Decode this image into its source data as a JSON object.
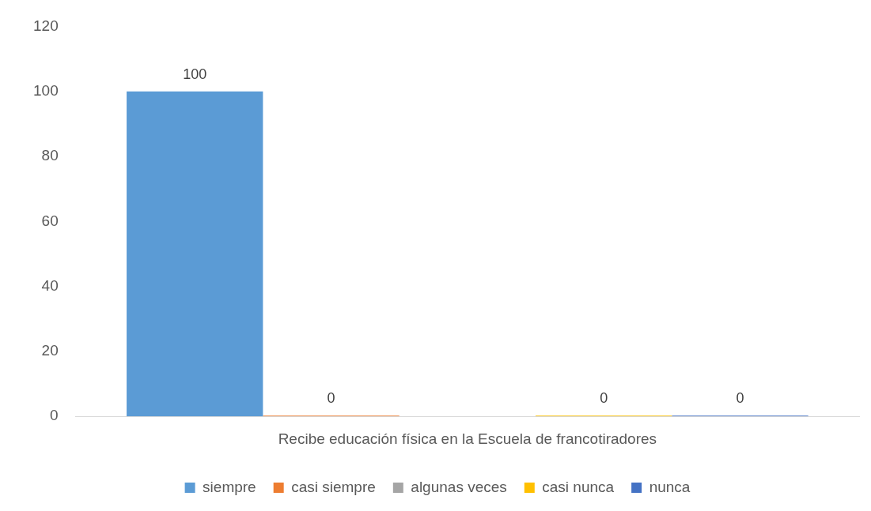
{
  "chart_data": {
    "type": "bar",
    "categories": [
      "Recibe educación física en la Escuela de francotiradores"
    ],
    "series": [
      {
        "name": "siempre",
        "color": "#5b9bd5",
        "values": [
          100
        ]
      },
      {
        "name": "casi siempre",
        "color": "#ed7d31",
        "values": [
          0
        ]
      },
      {
        "name": "algunas veces",
        "color": "#a5a5a5",
        "values": [
          null
        ]
      },
      {
        "name": "casi nunca",
        "color": "#ffc000",
        "values": [
          0
        ]
      },
      {
        "name": "nunca",
        "color": "#4472c4",
        "values": [
          0
        ]
      }
    ],
    "ylim": [
      0,
      120
    ],
    "yticks": [
      0,
      20,
      40,
      60,
      80,
      100,
      120
    ],
    "grid": false,
    "legend": "bottom",
    "data_labels": true
  }
}
